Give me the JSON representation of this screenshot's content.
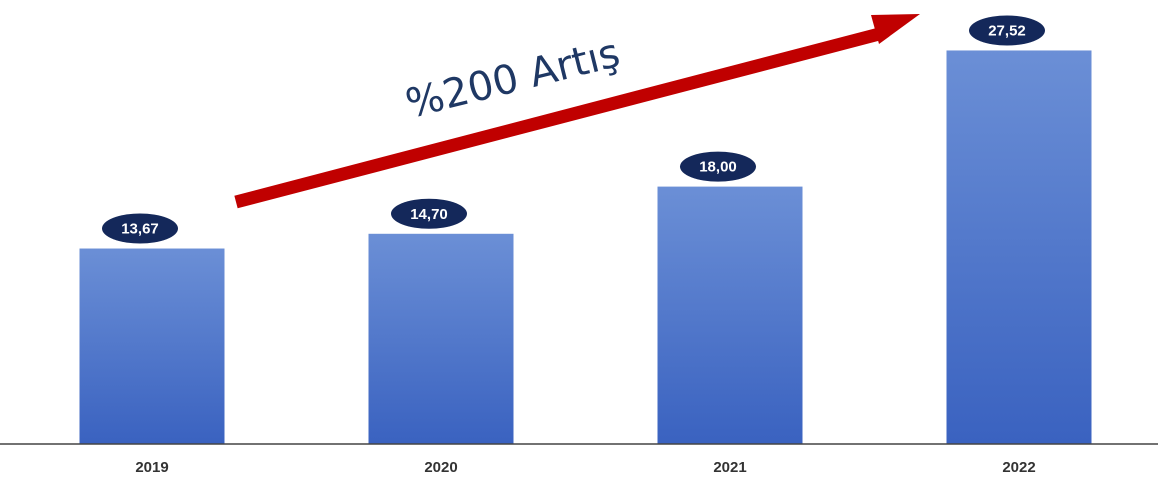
{
  "chart_data": {
    "type": "bar",
    "categories": [
      "2019",
      "2020",
      "2021",
      "2022"
    ],
    "values": [
      13.67,
      14.7,
      18.0,
      27.52
    ],
    "value_labels": [
      "13,67",
      "14,70",
      "18,00",
      "27,52"
    ],
    "title": "",
    "xlabel": "",
    "ylabel": "",
    "ylim": [
      0,
      30
    ],
    "grid": false,
    "legend": "none",
    "annotation": {
      "text": "%200 Artış",
      "arrow": "up-right"
    },
    "colors": {
      "bar_top": "#6b8fd6",
      "bar_bottom": "#3a62c0",
      "label_bubble": "#14285a",
      "arrow": "#c00000",
      "annotation_text": "#1f3864",
      "axis": "#444444"
    }
  }
}
